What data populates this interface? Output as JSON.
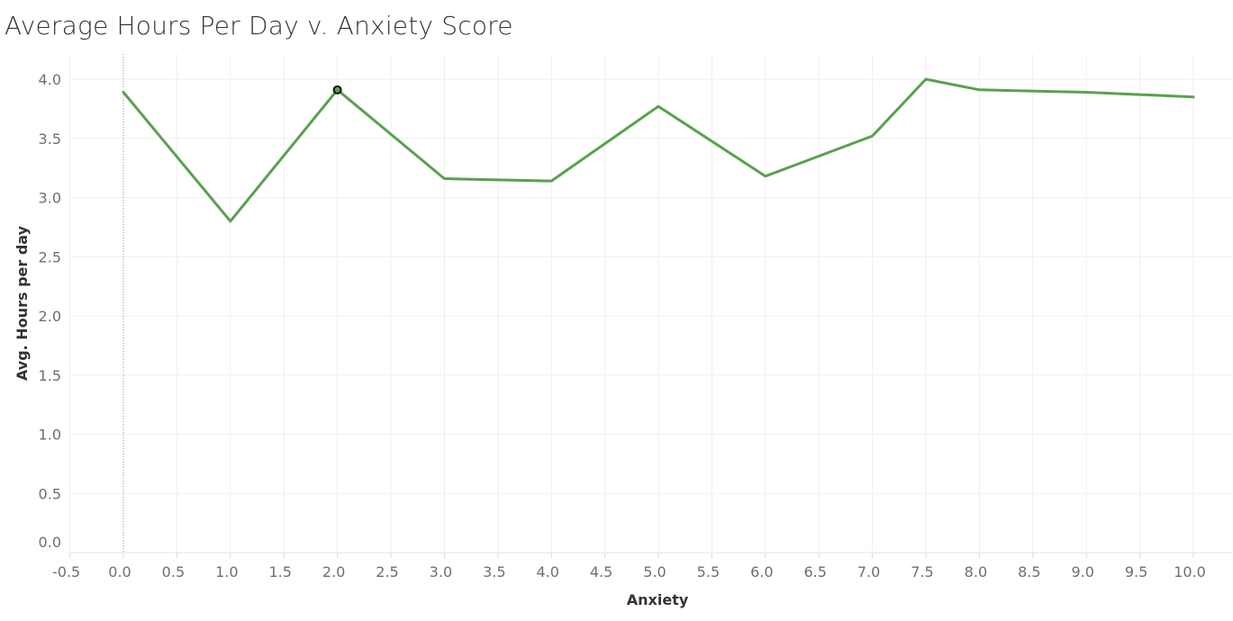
{
  "chart_data": {
    "type": "line",
    "title": "Average Hours Per Day v. Anxiety Score",
    "xlabel": "Anxiety",
    "ylabel": "Avg. Hours per day",
    "xlim": [
      -0.5,
      10.0
    ],
    "ylim": [
      0.0,
      4.0
    ],
    "x_ticks": [
      "-0.5",
      "0.0",
      "0.5",
      "1.0",
      "1.5",
      "2.0",
      "2.5",
      "3.0",
      "3.5",
      "4.0",
      "4.5",
      "5.0",
      "5.5",
      "6.0",
      "6.5",
      "7.0",
      "7.5",
      "8.0",
      "8.5",
      "9.0",
      "9.5",
      "10.0"
    ],
    "y_ticks": [
      "0.0",
      "0.5",
      "1.0",
      "1.5",
      "2.0",
      "2.5",
      "3.0",
      "3.5",
      "4.0"
    ],
    "grid": true,
    "series": [
      {
        "color": "#59a14f",
        "points": [
          {
            "x": 0.0,
            "y": 3.89
          },
          {
            "x": 1.0,
            "y": 2.8
          },
          {
            "x": 2.0,
            "y": 3.91
          },
          {
            "x": 3.0,
            "y": 3.16
          },
          {
            "x": 4.0,
            "y": 3.14
          },
          {
            "x": 5.0,
            "y": 3.77
          },
          {
            "x": 6.0,
            "y": 3.18
          },
          {
            "x": 7.0,
            "y": 3.52
          },
          {
            "x": 7.5,
            "y": 4.0
          },
          {
            "x": 8.0,
            "y": 3.91
          },
          {
            "x": 9.0,
            "y": 3.89
          },
          {
            "x": 10.0,
            "y": 3.85
          }
        ]
      }
    ],
    "highlighted_point": {
      "x": 2.0,
      "y": 3.91
    }
  }
}
